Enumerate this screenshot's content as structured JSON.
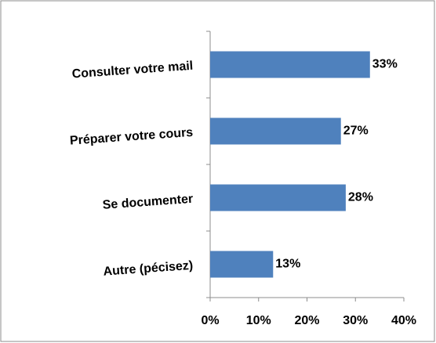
{
  "chart_data": {
    "type": "bar",
    "orientation": "horizontal",
    "categories": [
      "Consulter votre mail",
      "Préparer votre cours",
      "Se documenter",
      "Autre (pécisez)"
    ],
    "values": [
      33,
      27,
      28,
      13
    ],
    "value_labels": [
      "33%",
      "27%",
      "28%",
      "13%"
    ],
    "color": "#4f81bd",
    "xlim": [
      0,
      40
    ],
    "xticks": [
      {
        "value": 0,
        "label": "0%"
      },
      {
        "value": 10,
        "label": "10%"
      },
      {
        "value": 20,
        "label": "20%"
      },
      {
        "value": 30,
        "label": "30%"
      },
      {
        "value": 40,
        "label": "40%"
      }
    ],
    "grid": false
  }
}
